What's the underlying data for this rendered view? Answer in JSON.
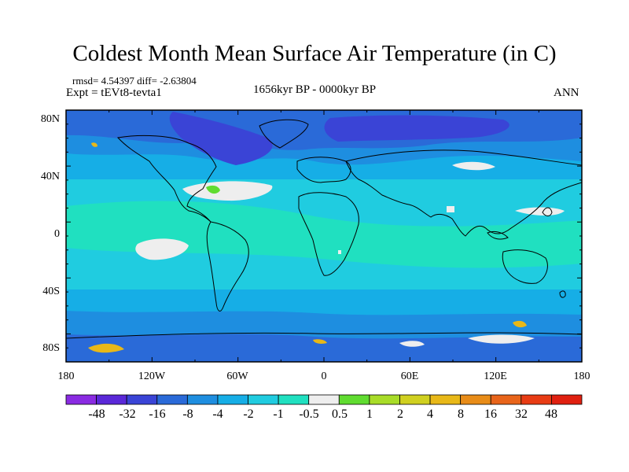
{
  "title": "Coldest Month Mean Surface Air Temperature (in C)",
  "stats": "rmsd= 4.54397 diff= -2.63804",
  "experiment": "Expt = tEVt8-tevta1",
  "period": "1656kyr BP - 0000kyr BP",
  "season": "ANN",
  "x_tick_labels": [
    "180",
    "120W",
    "60W",
    "0",
    "60E",
    "120E",
    "180"
  ],
  "y_tick_labels": [
    "80N",
    "40N",
    "0",
    "40S",
    "80S"
  ],
  "colorbar": {
    "labels": [
      "-48",
      "-32",
      "-16",
      "-8",
      "-4",
      "-2",
      "-1",
      "-0.5",
      "0.5",
      "1",
      "2",
      "4",
      "8",
      "16",
      "32",
      "48"
    ],
    "colors": [
      "#8a2be2",
      "#5a28d8",
      "#3a44d6",
      "#2a6ad8",
      "#1e8ee0",
      "#16aee6",
      "#20cce0",
      "#20e0c0",
      "#eeeeee",
      "#60dc30",
      "#a8dc28",
      "#d0d020",
      "#e8b818",
      "#e88c18",
      "#e8641a",
      "#e83c14",
      "#e02010"
    ]
  },
  "map_colors": {
    "ocean": "#16aee6",
    "tropical": "#20cce0",
    "warm_band": "#20e0c0",
    "cold": "#1e8ee0",
    "colder": "#2a6ad8",
    "coldest": "#3a44d6",
    "near_zero": "#eeeeee",
    "positive": "#60dc30",
    "warm": "#e8b818"
  }
}
